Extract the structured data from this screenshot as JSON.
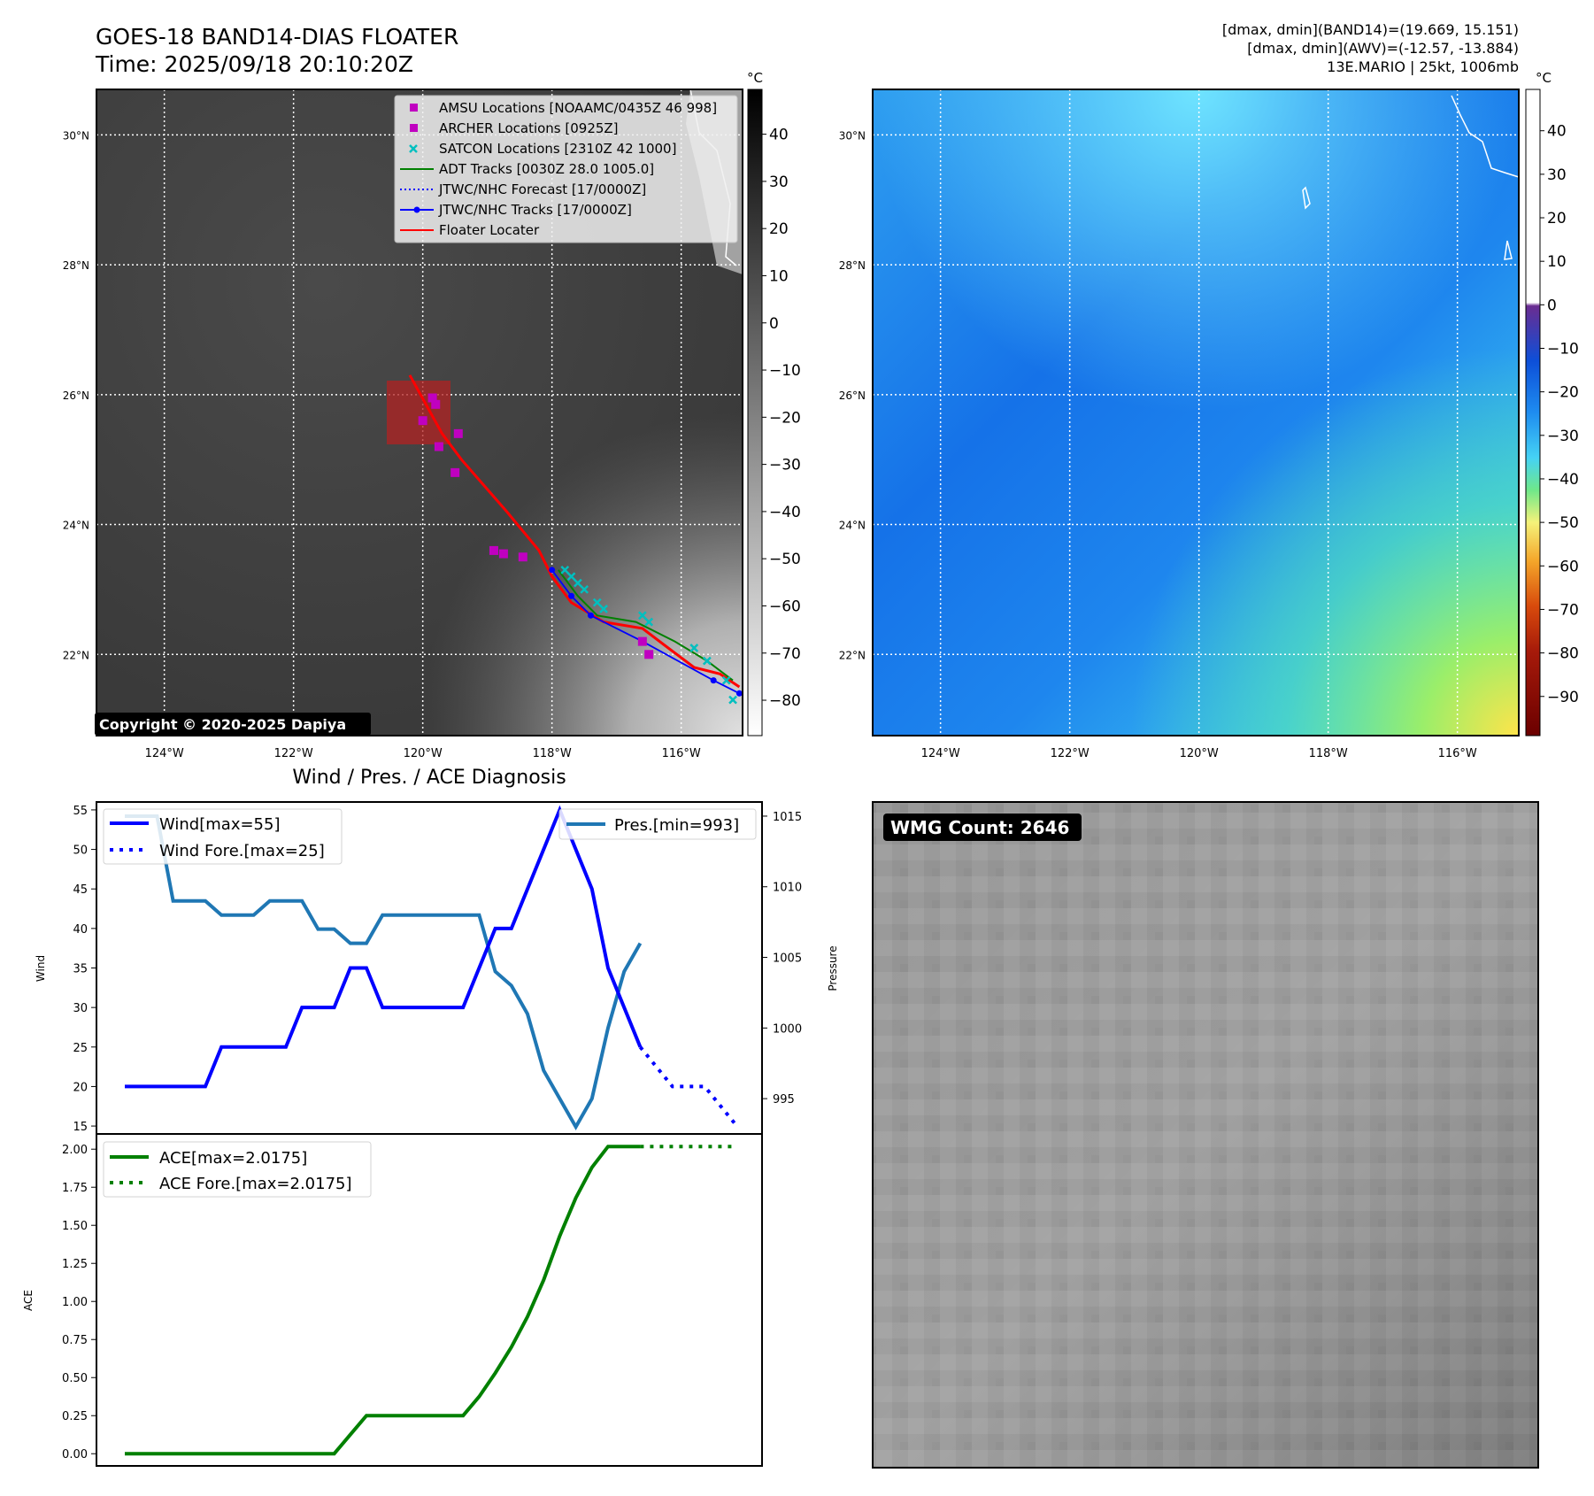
{
  "header": {
    "title_line1": "GOES-18 BAND14-DIAS FLOATER",
    "title_line2": "Time: 2025/09/18 20:10:20Z",
    "info_line1": "[dmax, dmin](BAND14)=(19.669, 15.151)",
    "info_line2": "[dmax, dmin](AWV)=(-12.57, -13.884)",
    "info_line3": "13E.MARIO | 25kt, 1006mb"
  },
  "colors": {
    "amsu": "#c000c0",
    "archer": "#c000c0",
    "satcon": "#00bfbf",
    "adt": "#008000",
    "forecast": "#0000ff",
    "tracks": "#0000ff",
    "floater": "#ff0000",
    "wind": "#0000ff",
    "pressure": "#1f77b4",
    "ace": "#008000"
  },
  "ir_map": {
    "colorbar_unit": "°C",
    "colorbar_ticks": [
      "40",
      "30",
      "20",
      "10",
      "0",
      "−10",
      "−20",
      "−30",
      "−40",
      "−50",
      "−60",
      "−70",
      "−80"
    ],
    "colorbar_tick_values": [
      40,
      30,
      20,
      10,
      0,
      -10,
      -20,
      -30,
      -40,
      -50,
      -60,
      -70,
      -80
    ],
    "copyright": "Copyright © 2020-2025 Dapiya",
    "legend": [
      {
        "label": "AMSU Locations [NOAAMC/0435Z 46 998]",
        "kind": "square",
        "color_key": "amsu"
      },
      {
        "label": "ARCHER Locations [0925Z]",
        "kind": "square",
        "color_key": "archer"
      },
      {
        "label": "SATCON Locations [2310Z 42 1000]",
        "kind": "x",
        "color_key": "satcon"
      },
      {
        "label": "ADT Tracks [0030Z 28.0 1005.0]",
        "kind": "line",
        "color_key": "adt"
      },
      {
        "label": "JTWC/NHC Forecast [17/0000Z]",
        "kind": "dotted",
        "color_key": "forecast"
      },
      {
        "label": "JTWC/NHC Tracks [17/0000Z]",
        "kind": "line-dot",
        "color_key": "tracks"
      },
      {
        "label": "Floater Locater",
        "kind": "line",
        "color_key": "floater"
      }
    ]
  },
  "awv_map": {
    "colorbar_unit": "°C",
    "colorbar_ticks": [
      "40",
      "30",
      "20",
      "10",
      "0",
      "−10",
      "−20",
      "−30",
      "−40",
      "−50",
      "−60",
      "−70",
      "−80",
      "−90"
    ],
    "colorbar_tick_values": [
      40,
      30,
      20,
      10,
      0,
      -10,
      -20,
      -30,
      -40,
      -50,
      -60,
      -70,
      -80,
      -90
    ]
  },
  "map_axes": {
    "lat_ticks": [
      "30°N",
      "28°N",
      "26°N",
      "24°N",
      "22°N"
    ],
    "lat_values": [
      30,
      28,
      26,
      24,
      22
    ],
    "lon_ticks": [
      "124°W",
      "122°W",
      "120°W",
      "118°W",
      "116°W"
    ],
    "lon_values": [
      -124,
      -122,
      -120,
      -118,
      -116
    ],
    "lon_range": [
      -125.05,
      -115.05
    ],
    "lat_range": [
      20.75,
      30.7
    ]
  },
  "diagnosis": {
    "title": "Wind / Pres. / ACE Diagnosis",
    "wind_ylabel": "Wind",
    "pressure_ylabel": "Pressure",
    "ace_ylabel": "ACE",
    "wind_ticks": [
      "55",
      "50",
      "45",
      "40",
      "35",
      "30",
      "25",
      "20",
      "15"
    ],
    "wind_tick_values": [
      55,
      50,
      45,
      40,
      35,
      30,
      25,
      20,
      15
    ],
    "pressure_ticks": [
      "1015",
      "1010",
      "1005",
      "1000",
      "995"
    ],
    "pressure_tick_values": [
      1015,
      1010,
      1005,
      1000,
      995
    ],
    "ace_ticks": [
      "2.00",
      "1.75",
      "1.50",
      "1.25",
      "1.00",
      "0.75",
      "0.50",
      "0.25",
      "0.00"
    ],
    "ace_tick_values": [
      2.0,
      1.75,
      1.5,
      1.25,
      1.0,
      0.75,
      0.5,
      0.25,
      0.0
    ],
    "legend_wind": "Wind[max=55]",
    "legend_wind_fore": "Wind Fore.[max=25]",
    "legend_pres": "Pres.[min=993]",
    "legend_ace": "ACE[max=2.0175]",
    "legend_ace_fore": "ACE Fore.[max=2.0175]"
  },
  "wmg": {
    "label": "WMG Count: 2646"
  },
  "chart_data": [
    {
      "type": "line",
      "title": "Wind / Pres. / ACE Diagnosis",
      "ylabel": "Wind",
      "ylim": [
        14,
        56
      ],
      "series": [
        {
          "name": "Wind[max=55]",
          "x": [
            0,
            1,
            2,
            3,
            4,
            5,
            6,
            7,
            8,
            9,
            10,
            11,
            12,
            13,
            14,
            15,
            16,
            17,
            18,
            19,
            20,
            21,
            22,
            23,
            24,
            25,
            26,
            27,
            28,
            29,
            30,
            31,
            32
          ],
          "values": [
            20,
            20,
            20,
            20,
            20,
            20,
            25,
            25,
            25,
            25,
            25,
            30,
            30,
            30,
            35,
            35,
            30,
            30,
            30,
            30,
            30,
            30,
            35,
            40,
            40,
            45,
            50,
            55,
            50,
            45,
            35,
            30,
            25
          ]
        },
        {
          "name": "Wind Fore.[max=25]",
          "x": [
            32,
            33,
            34,
            35,
            36,
            37,
            38
          ],
          "values": [
            25,
            22.5,
            20,
            20,
            20,
            17.5,
            15
          ]
        }
      ]
    },
    {
      "type": "line",
      "ylabel": "Pressure",
      "ylim": [
        992.5,
        1016
      ],
      "series": [
        {
          "name": "Pres.[min=993]",
          "x": [
            0,
            1,
            2,
            3,
            4,
            5,
            6,
            7,
            8,
            9,
            10,
            11,
            12,
            13,
            14,
            15,
            16,
            17,
            18,
            19,
            20,
            21,
            22,
            23,
            24,
            25,
            26,
            27,
            28,
            29,
            30,
            31,
            32
          ],
          "values": [
            1015,
            1015,
            1015,
            1009,
            1009,
            1009,
            1008,
            1008,
            1008,
            1009,
            1009,
            1009,
            1007,
            1007,
            1006,
            1006,
            1008,
            1008,
            1008,
            1008,
            1008,
            1008,
            1008,
            1004,
            1003,
            1001,
            997,
            995,
            993,
            995,
            1000,
            1004,
            1006
          ]
        }
      ]
    },
    {
      "type": "line",
      "ylabel": "ACE",
      "ylim": [
        -0.08,
        2.1
      ],
      "series": [
        {
          "name": "ACE[max=2.0175]",
          "x": [
            0,
            1,
            2,
            3,
            4,
            5,
            6,
            7,
            8,
            9,
            10,
            11,
            12,
            13,
            14,
            15,
            16,
            17,
            18,
            19,
            20,
            21,
            22,
            23,
            24,
            25,
            26,
            27,
            28,
            29,
            30,
            31,
            32
          ],
          "values": [
            0,
            0,
            0,
            0,
            0,
            0,
            0,
            0,
            0,
            0,
            0,
            0,
            0,
            0,
            0.125,
            0.25,
            0.25,
            0.25,
            0.25,
            0.25,
            0.25,
            0.25,
            0.375,
            0.53,
            0.7,
            0.9,
            1.14,
            1.43,
            1.68,
            1.88,
            2.0175,
            2.0175,
            2.0175
          ]
        },
        {
          "name": "ACE Fore.[max=2.0175]",
          "x": [
            32,
            33,
            34,
            35,
            36,
            37,
            38
          ],
          "values": [
            2.0175,
            2.0175,
            2.0175,
            2.0175,
            2.0175,
            2.0175,
            2.0175
          ]
        }
      ]
    },
    {
      "type": "scatter",
      "xlabel": "",
      "ylabel": "",
      "xlim": [
        -125.05,
        -115.05
      ],
      "ylim": [
        20.75,
        30.7
      ],
      "series": [
        {
          "name": "AMSU Locations [NOAAMC/0435Z 46 998]",
          "points": [
            [
              -119.85,
              25.95
            ],
            [
              -119.8,
              25.85
            ],
            [
              -119.45,
              25.4
            ],
            [
              -119.75,
              25.2
            ],
            [
              -119.5,
              24.8
            ],
            [
              -118.9,
              23.6
            ],
            [
              -118.75,
              23.55
            ],
            [
              -118.45,
              23.5
            ],
            [
              -116.6,
              22.2
            ]
          ]
        },
        {
          "name": "ARCHER Locations [0925Z]",
          "points": [
            [
              -120.0,
              25.6
            ],
            [
              -116.5,
              22.0
            ]
          ]
        },
        {
          "name": "SATCON Locations [2310Z 42 1000]",
          "points": [
            [
              -117.8,
              23.3
            ],
            [
              -117.7,
              23.2
            ],
            [
              -117.6,
              23.1
            ],
            [
              -117.5,
              23.0
            ],
            [
              -117.3,
              22.8
            ],
            [
              -117.2,
              22.7
            ],
            [
              -116.6,
              22.6
            ],
            [
              -116.5,
              22.5
            ],
            [
              -115.8,
              22.1
            ],
            [
              -115.6,
              21.9
            ],
            [
              -115.3,
              21.6
            ],
            [
              -115.2,
              21.3
            ]
          ]
        },
        {
          "name": "ADT Tracks [0030Z 28.0 1005.0]",
          "points": [
            [
              -117.9,
              23.3
            ],
            [
              -117.6,
              22.9
            ],
            [
              -117.3,
              22.6
            ],
            [
              -116.7,
              22.5
            ],
            [
              -116.5,
              22.4
            ],
            [
              -116.1,
              22.2
            ],
            [
              -115.6,
              21.9
            ],
            [
              -115.2,
              21.6
            ]
          ]
        },
        {
          "name": "JTWC/NHC Tracks [17/0000Z]",
          "points": [
            [
              -118.0,
              23.3
            ],
            [
              -117.7,
              22.9
            ],
            [
              -117.4,
              22.6
            ],
            [
              -116.6,
              22.2
            ],
            [
              -115.5,
              21.6
            ],
            [
              -115.1,
              21.4
            ]
          ]
        },
        {
          "name": "Floater Locater",
          "points": [
            [
              -120.2,
              26.3
            ],
            [
              -119.7,
              25.4
            ],
            [
              -119.4,
              25.0
            ],
            [
              -118.7,
              24.2
            ],
            [
              -118.2,
              23.6
            ],
            [
              -118.0,
              23.2
            ],
            [
              -117.7,
              22.8
            ],
            [
              -117.2,
              22.5
            ],
            [
              -116.6,
              22.4
            ],
            [
              -116.2,
              22.1
            ],
            [
              -115.8,
              21.8
            ],
            [
              -115.4,
              21.7
            ],
            [
              -115.1,
              21.5
            ]
          ]
        }
      ]
    }
  ]
}
